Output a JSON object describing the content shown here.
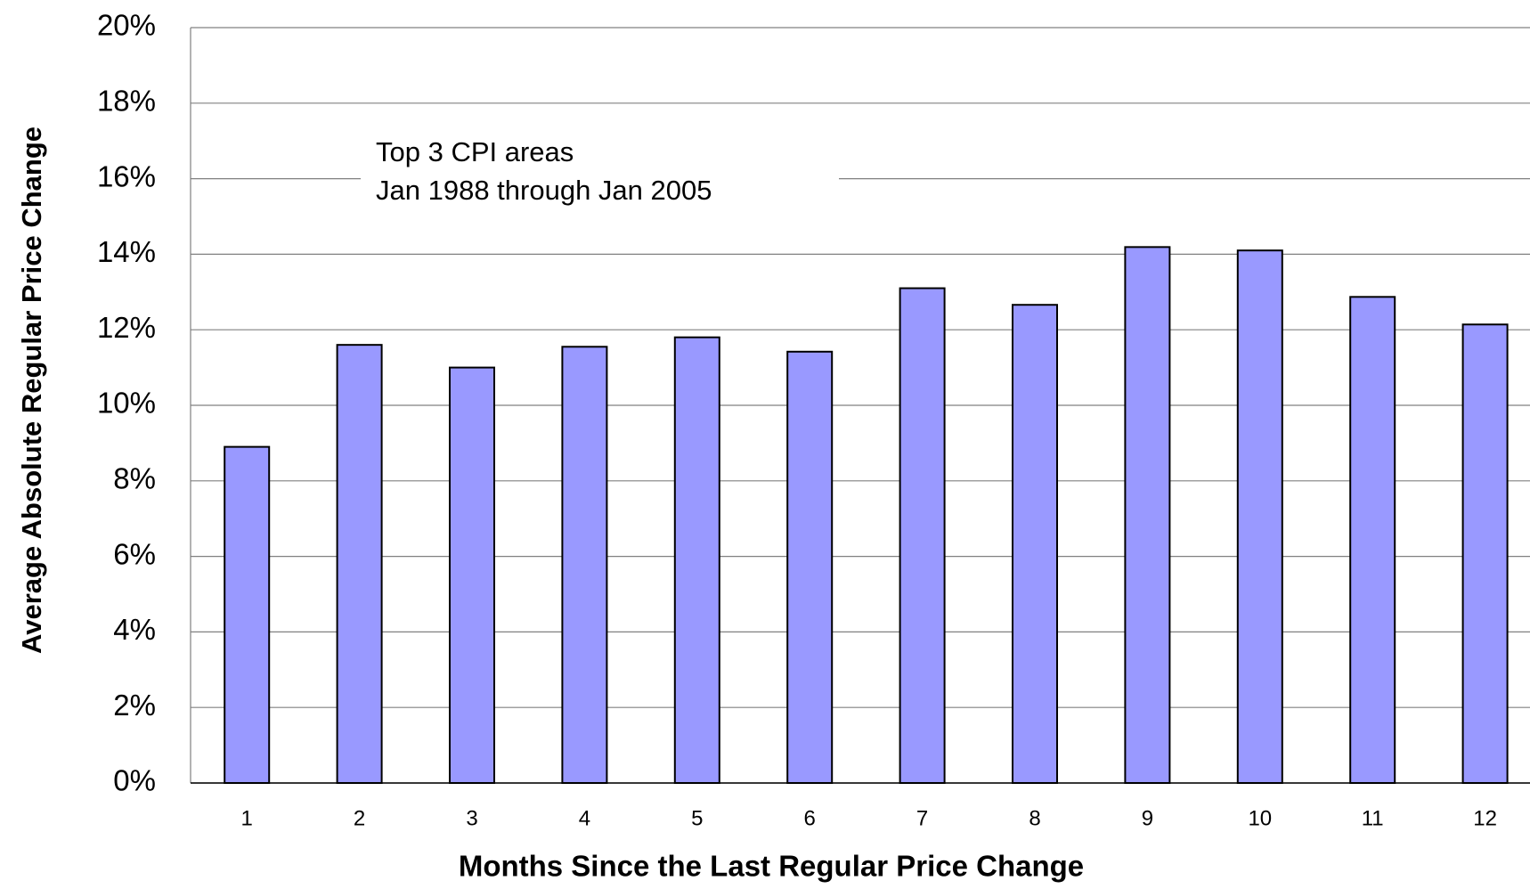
{
  "chart_data": {
    "type": "bar",
    "x_label": "Months Since the Last Regular Price Change",
    "y_label": "Average Absolute Regular Price Change",
    "annotations": [
      "Top 3 CPI areas",
      "Jan 1988 through Jan 2005"
    ],
    "categories": [
      "1",
      "2",
      "3",
      "4",
      "5",
      "6",
      "7",
      "8",
      "9",
      "10",
      "11",
      "12"
    ],
    "values": [
      8.9,
      11.6,
      11.0,
      11.55,
      11.8,
      11.42,
      13.1,
      12.66,
      14.19,
      14.1,
      12.87,
      12.14
    ],
    "color": "#9999ff",
    "ylim": [
      0,
      20
    ],
    "yticks": [
      {
        "value": 0,
        "label": "0%"
      },
      {
        "value": 2,
        "label": "2%"
      },
      {
        "value": 4,
        "label": "4%"
      },
      {
        "value": 6,
        "label": "6%"
      },
      {
        "value": 8,
        "label": "8%"
      },
      {
        "value": 10,
        "label": "10%"
      },
      {
        "value": 12,
        "label": "12%"
      },
      {
        "value": 14,
        "label": "14%"
      },
      {
        "value": 16,
        "label": "16%"
      },
      {
        "value": 18,
        "label": "18%"
      },
      {
        "value": 20,
        "label": "20%"
      }
    ],
    "grid": true
  }
}
